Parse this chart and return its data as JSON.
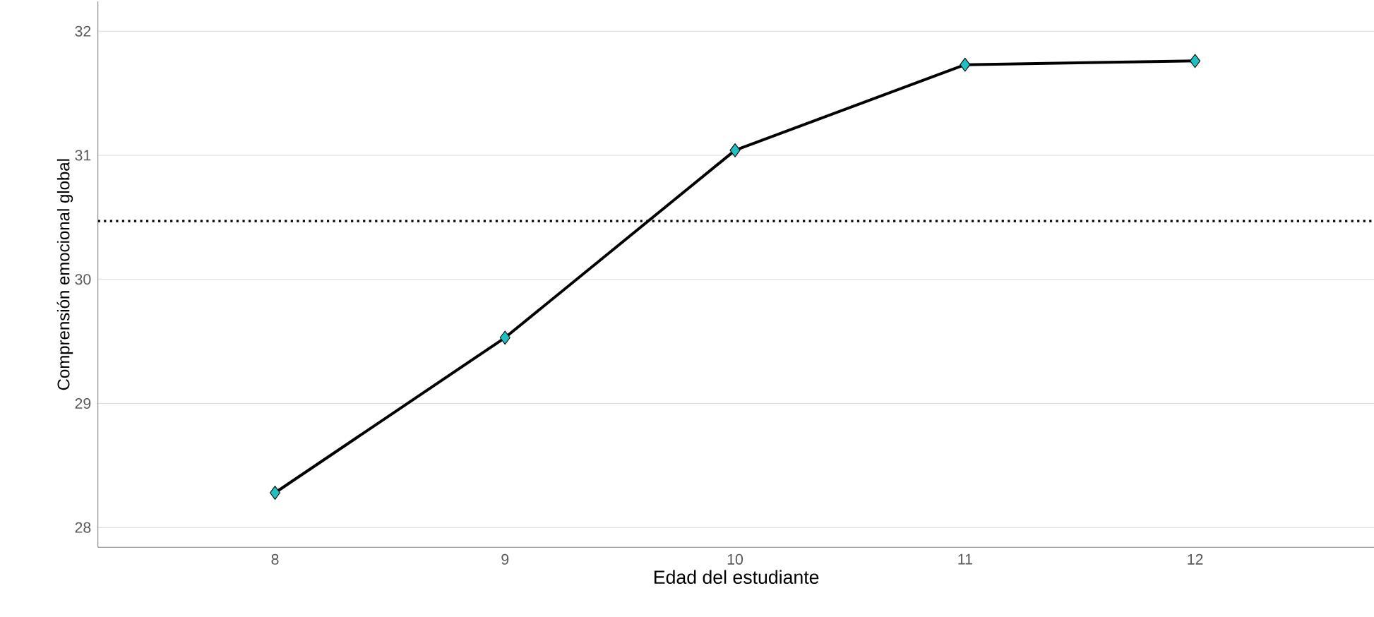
{
  "chart_data": {
    "type": "line",
    "xlabel": "Edad del estudiante",
    "ylabel": "Comprensión emocional global",
    "x": [
      8,
      9,
      10,
      11,
      12
    ],
    "series": [
      {
        "color": "#000000",
        "values": [
          28.28,
          29.53,
          31.04,
          31.73,
          31.76
        ]
      }
    ],
    "marker": "diamond",
    "line_style": "solid",
    "grid": "y",
    "xlim": [
      7.23,
      12.78
    ],
    "ylim": [
      27.84,
      32.24
    ],
    "xticks": [
      8,
      9,
      10,
      11,
      12
    ],
    "yticks": [
      28,
      29,
      30,
      31,
      32
    ],
    "ref_lines": [
      {
        "axis": "y",
        "value": 30.47,
        "line_style": "dotted",
        "color": "#000000"
      }
    ]
  }
}
